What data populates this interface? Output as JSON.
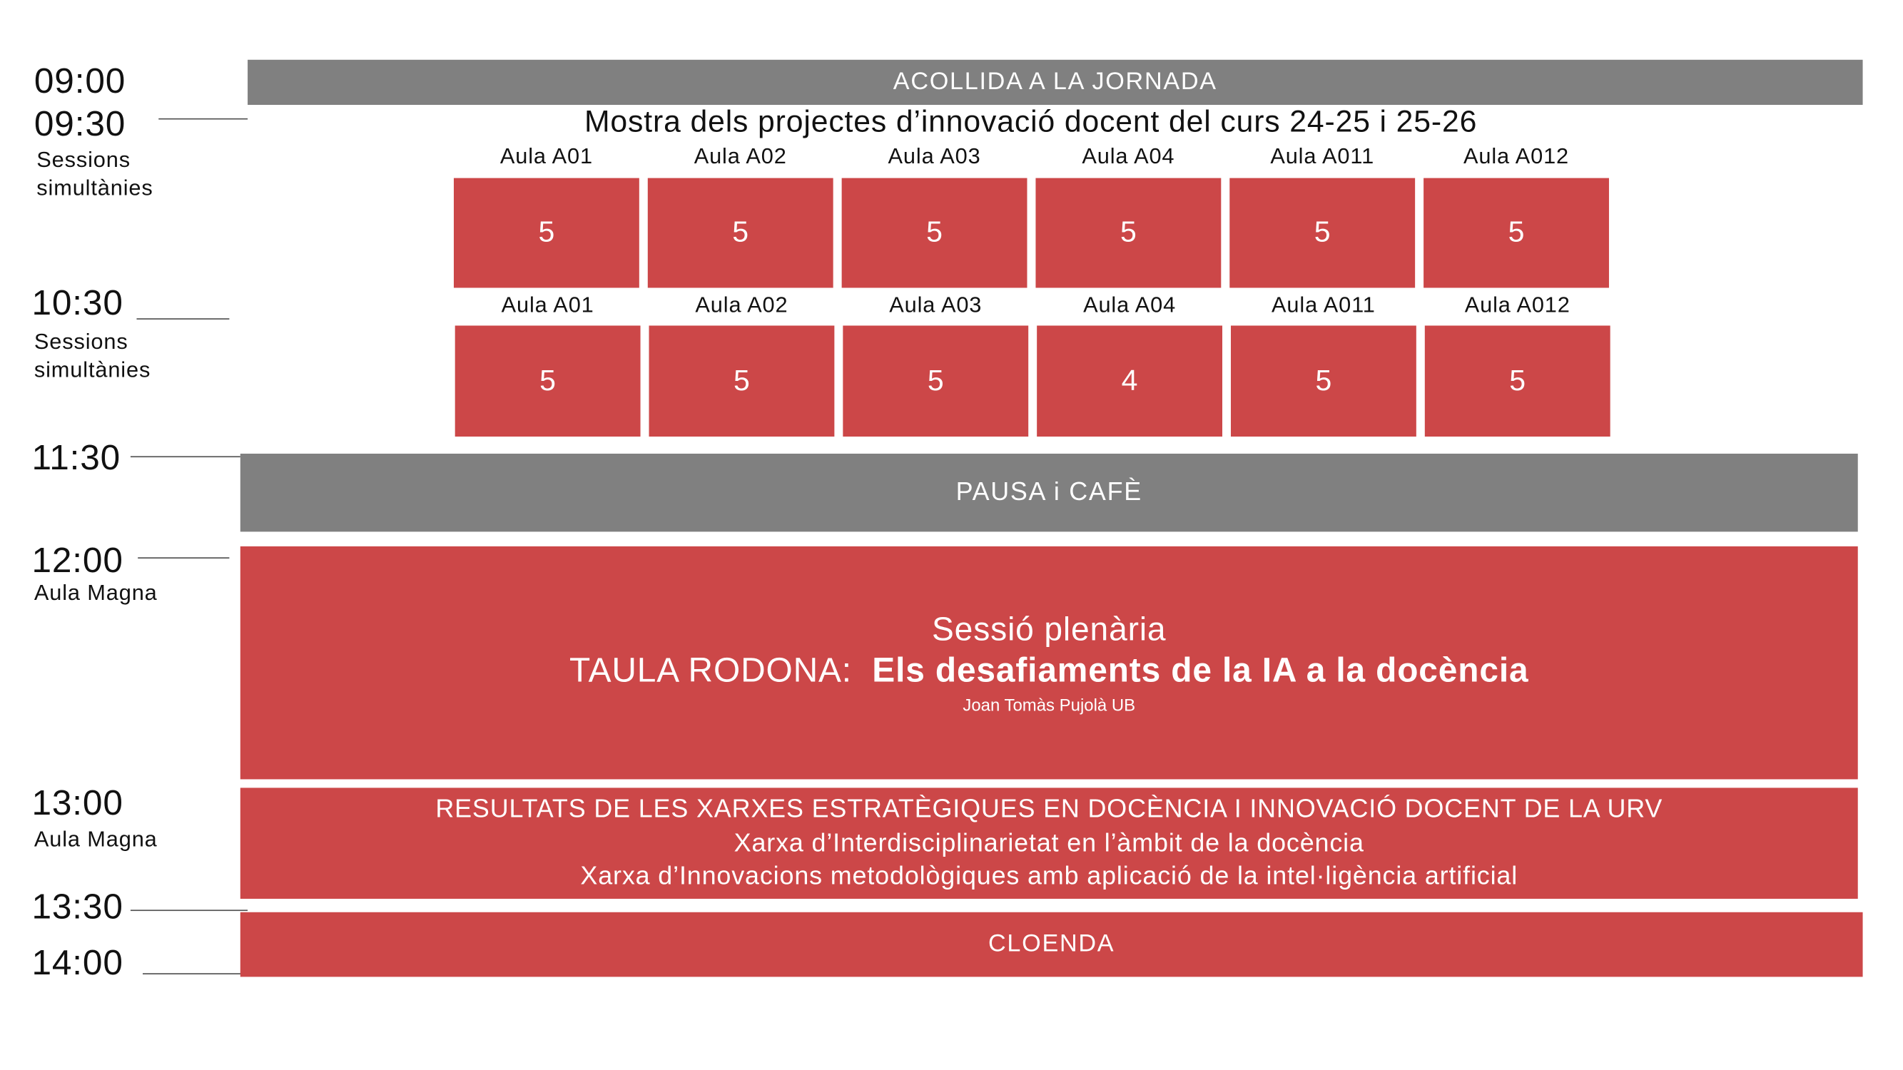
{
  "colors": {
    "accent_red": "#cc4748",
    "gray": "#808080"
  },
  "times": {
    "t0900": "09:00",
    "t0930": "09:30",
    "t1030": "10:30",
    "t1130": "11:30",
    "t1200": "12:00",
    "t1300": "13:00",
    "t1330": "13:30",
    "t1400": "14:00"
  },
  "labels": {
    "sessions1": "Sessions",
    "simultanies1": "simultànies",
    "sessions2": "Sessions",
    "simultanies2": "simultànies",
    "aula_magna1": "Aula Magna",
    "aula_magna2": "Aula Magna"
  },
  "welcome": "ACOLLIDA A LA JORNADA",
  "showcase_title": "Mostra dels projectes d’innovació docent del curs 24-25 i 25-26",
  "row1": [
    {
      "room": "Aula A01",
      "count": "5"
    },
    {
      "room": "Aula A02",
      "count": "5"
    },
    {
      "room": "Aula A03",
      "count": "5"
    },
    {
      "room": "Aula A04",
      "count": "5"
    },
    {
      "room": "Aula A011",
      "count": "5"
    },
    {
      "room": "Aula A012",
      "count": "5"
    }
  ],
  "row2": [
    {
      "room": "Aula A01",
      "count": "5"
    },
    {
      "room": "Aula A02",
      "count": "5"
    },
    {
      "room": "Aula A03",
      "count": "5"
    },
    {
      "room": "Aula A04",
      "count": "4"
    },
    {
      "room": "Aula A011",
      "count": "5"
    },
    {
      "room": "Aula A012",
      "count": "5"
    }
  ],
  "break": "PAUSA i CAFÈ",
  "plenary": {
    "heading": "Sessió plenària",
    "prefix": "TAULA RODONA:",
    "title": "Els desafiaments de la IA a la docència",
    "speaker": "Joan Tomàs Pujolà UB"
  },
  "results": {
    "line1": "RESULTATS DE LES XARXES ESTRATÈGIQUES EN DOCÈNCIA I INNOVACIÓ DOCENT DE LA URV",
    "line2": "Xarxa d’Interdisciplinarietat en l’àmbit de la docència",
    "line3": "Xarxa d’Innovacions metodològiques amb aplicació de la intel·ligència artificial"
  },
  "closing": "CLOENDA"
}
